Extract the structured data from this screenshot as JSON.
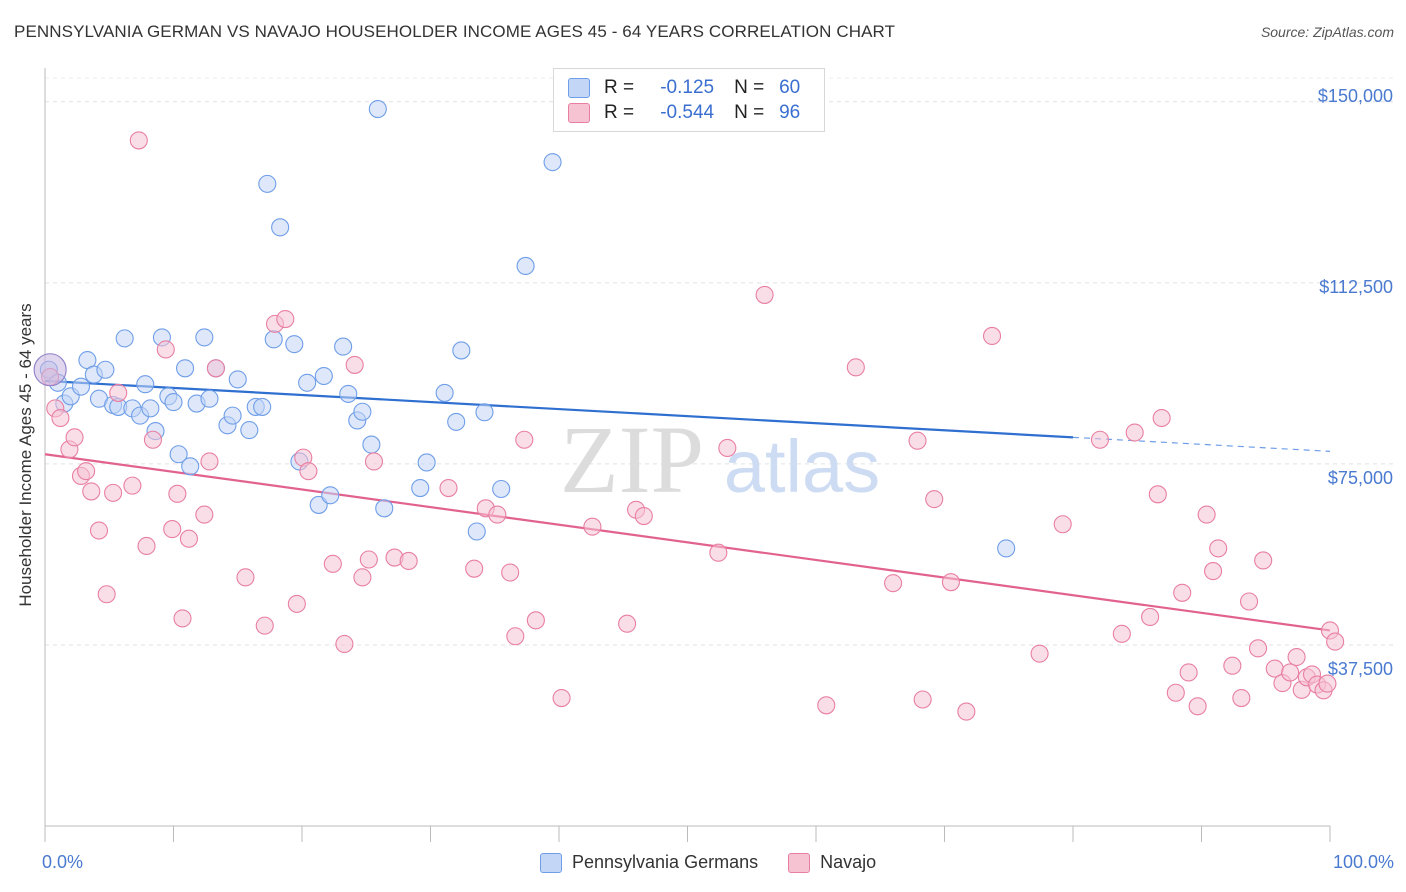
{
  "chart_data": {
    "type": "scatter",
    "title": "PENNSYLVANIA GERMAN VS NAVAJO HOUSEHOLDER INCOME AGES 45 - 64 YEARS CORRELATION CHART",
    "source": "Source: ZipAtlas.com",
    "xlabel": "",
    "ylabel": "Householder Income Ages 45 - 64 years",
    "xlim": [
      0,
      100
    ],
    "ylim": [
      0,
      157000
    ],
    "y_ticks": [
      37500,
      75000,
      112500,
      150000
    ],
    "y_tick_labels": [
      "$37,500",
      "$75,000",
      "$112,500",
      "$150,000"
    ],
    "x_tick_labels": [
      "0.0%",
      "100.0%"
    ],
    "grid": true,
    "watermark": {
      "zip": "ZIP",
      "atlas": "atlas"
    },
    "series": [
      {
        "name": "Pennsylvania Germans",
        "color": "#6f9ee8",
        "fill": "#c3d6f5",
        "legend_r_label": "R =",
        "r": "-0.125",
        "legend_n_label": "N =",
        "n": "60",
        "trend": {
          "x0": 0,
          "y0": 92200,
          "x1": 80,
          "y1": 80500,
          "dash_to_x": 100,
          "dash_to_y": 77600
        },
        "points": [
          [
            0.3,
            94500
          ],
          [
            1,
            91800
          ],
          [
            1.5,
            87500
          ],
          [
            2,
            89000
          ],
          [
            2.8,
            91000
          ],
          [
            3.3,
            96500
          ],
          [
            3.8,
            93500
          ],
          [
            4.2,
            88500
          ],
          [
            4.7,
            94500
          ],
          [
            5.3,
            87200
          ],
          [
            5.7,
            86800
          ],
          [
            6.2,
            101000
          ],
          [
            6.8,
            86500
          ],
          [
            7.4,
            85000
          ],
          [
            7.8,
            91500
          ],
          [
            8.2,
            86500
          ],
          [
            8.6,
            81800
          ],
          [
            9.1,
            101200
          ],
          [
            9.6,
            89000
          ],
          [
            10,
            87800
          ],
          [
            10.4,
            77000
          ],
          [
            10.9,
            94800
          ],
          [
            11.3,
            74500
          ],
          [
            11.8,
            87500
          ],
          [
            12.4,
            101200
          ],
          [
            12.8,
            88500
          ],
          [
            13.3,
            94800
          ],
          [
            14.2,
            83000
          ],
          [
            14.6,
            85000
          ],
          [
            15,
            92500
          ],
          [
            15.9,
            82000
          ],
          [
            16.4,
            86800
          ],
          [
            16.9,
            86800
          ],
          [
            17.3,
            133000
          ],
          [
            17.8,
            100800
          ],
          [
            18.3,
            124000
          ],
          [
            19.4,
            99800
          ],
          [
            19.8,
            75500
          ],
          [
            20.4,
            91800
          ],
          [
            21.3,
            66500
          ],
          [
            21.7,
            93200
          ],
          [
            22.2,
            68500
          ],
          [
            23.2,
            99300
          ],
          [
            23.6,
            89500
          ],
          [
            24.3,
            84000
          ],
          [
            24.7,
            85800
          ],
          [
            25.4,
            79000
          ],
          [
            25.9,
            148500
          ],
          [
            26.4,
            65800
          ],
          [
            29.2,
            70000
          ],
          [
            29.7,
            75300
          ],
          [
            31.1,
            89700
          ],
          [
            32,
            83700
          ],
          [
            32.4,
            98500
          ],
          [
            33.6,
            61000
          ],
          [
            34.2,
            85700
          ],
          [
            35.5,
            69800
          ],
          [
            37.4,
            116000
          ],
          [
            39.5,
            137500
          ],
          [
            74.8,
            57500
          ]
        ]
      },
      {
        "name": "Navajo",
        "color": "#e87fa2",
        "fill": "#f6c3d3",
        "legend_r_label": "R =",
        "r": "-0.544",
        "legend_n_label": "N =",
        "n": "96",
        "trend": {
          "x0": 0,
          "y0": 77000,
          "x1": 100,
          "y1": 40500
        },
        "points": [
          [
            0.4,
            93000
          ],
          [
            0.8,
            86500
          ],
          [
            1.2,
            84500
          ],
          [
            1.9,
            78000
          ],
          [
            2.3,
            80500
          ],
          [
            2.8,
            72500
          ],
          [
            3.2,
            73500
          ],
          [
            3.6,
            69300
          ],
          [
            4.2,
            61200
          ],
          [
            4.8,
            48000
          ],
          [
            5.3,
            69000
          ],
          [
            5.7,
            89700
          ],
          [
            6.8,
            70500
          ],
          [
            7.3,
            142000
          ],
          [
            7.9,
            58000
          ],
          [
            8.4,
            80000
          ],
          [
            9.4,
            98700
          ],
          [
            9.9,
            61500
          ],
          [
            10.3,
            68800
          ],
          [
            10.7,
            43000
          ],
          [
            11.2,
            59500
          ],
          [
            12.4,
            64500
          ],
          [
            12.8,
            75500
          ],
          [
            13.3,
            94800
          ],
          [
            15.6,
            51500
          ],
          [
            17.1,
            41500
          ],
          [
            17.9,
            104000
          ],
          [
            18.7,
            105000
          ],
          [
            19.6,
            46000
          ],
          [
            20.1,
            76300
          ],
          [
            20.5,
            73500
          ],
          [
            22.4,
            54300
          ],
          [
            23.3,
            37700
          ],
          [
            24.1,
            95500
          ],
          [
            24.7,
            51500
          ],
          [
            25.2,
            55200
          ],
          [
            25.6,
            75500
          ],
          [
            27.2,
            55600
          ],
          [
            28.3,
            54900
          ],
          [
            31.4,
            70000
          ],
          [
            33.4,
            53300
          ],
          [
            34.3,
            65800
          ],
          [
            35.2,
            64500
          ],
          [
            36.2,
            52500
          ],
          [
            36.6,
            39300
          ],
          [
            37.3,
            80000
          ],
          [
            38.2,
            42600
          ],
          [
            40.2,
            26500
          ],
          [
            42.6,
            62000
          ],
          [
            45.3,
            41900
          ],
          [
            46,
            65500
          ],
          [
            46.6,
            64200
          ],
          [
            52.4,
            56600
          ],
          [
            53.1,
            78300
          ],
          [
            56,
            110000
          ],
          [
            60.8,
            25000
          ],
          [
            63.1,
            95000
          ],
          [
            66,
            50300
          ],
          [
            67.9,
            79800
          ],
          [
            68.3,
            26200
          ],
          [
            69.2,
            67700
          ],
          [
            70.5,
            50500
          ],
          [
            71.7,
            23700
          ],
          [
            73.7,
            101500
          ],
          [
            77.4,
            35700
          ],
          [
            79.2,
            62500
          ],
          [
            82.1,
            80000
          ],
          [
            83.8,
            39800
          ],
          [
            84.8,
            81500
          ],
          [
            86,
            43300
          ],
          [
            86.6,
            68700
          ],
          [
            86.9,
            84500
          ],
          [
            88,
            27600
          ],
          [
            88.5,
            48300
          ],
          [
            89,
            31800
          ],
          [
            89.7,
            24800
          ],
          [
            90.4,
            64500
          ],
          [
            90.9,
            52800
          ],
          [
            91.3,
            57500
          ],
          [
            92.4,
            33200
          ],
          [
            93.1,
            26500
          ],
          [
            93.7,
            46500
          ],
          [
            94.4,
            36800
          ],
          [
            94.8,
            55000
          ],
          [
            95.7,
            32600
          ],
          [
            96.3,
            29600
          ],
          [
            96.9,
            31800
          ],
          [
            97.4,
            35000
          ],
          [
            97.8,
            28200
          ],
          [
            98.2,
            30800
          ],
          [
            98.6,
            31400
          ],
          [
            99,
            29300
          ],
          [
            99.5,
            28100
          ],
          [
            99.8,
            29500
          ],
          [
            100,
            40500
          ],
          [
            100.4,
            38200
          ]
        ]
      }
    ]
  }
}
